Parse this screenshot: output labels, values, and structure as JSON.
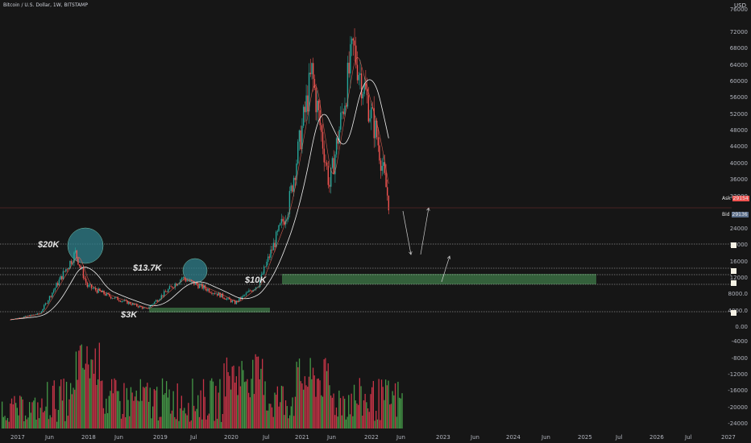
{
  "header": {
    "symbol_line": "Bitcoin / U.S. Dollar, 1W, BITSTAMP",
    "currency": "USD"
  },
  "levels": {
    "l20k": "$20K",
    "l13k": "$13.7K",
    "l10k": "$10K",
    "l3k": "$3K"
  },
  "price_axis": [
    "76000",
    "72000",
    "68000",
    "64000",
    "60000",
    "56000",
    "52000",
    "48000",
    "44000",
    "40000",
    "36000",
    "32000",
    "29154",
    "29136",
    "24000",
    "20000",
    "16000",
    "12000",
    "8000.0",
    "4000.0",
    "0.00"
  ],
  "price_axis_positions_hint": "",
  "volume_axis": [
    "-4000",
    "-8000",
    "-12000",
    "-16000",
    "-20000",
    "-24000"
  ],
  "time_axis": [
    "2017",
    "Jun",
    "2018",
    "Jun",
    "2019",
    "Jul",
    "2020",
    "Jul",
    "2021",
    "Jun",
    "2022",
    "Jun",
    "2023",
    "Jun",
    "2024",
    "Jun",
    "2025",
    "Jul",
    "2026",
    "Jul",
    "2027"
  ],
  "bid_ask": {
    "ask_label": "Ask",
    "ask_value": "29154",
    "bid_label": "Bid",
    "bid_value": "29136"
  },
  "colors": {
    "bg": "#161616",
    "up": "#26a69a",
    "down": "#ef5350",
    "vol_up": "#4caf50",
    "vol_down": "#e53950",
    "zone": "#3f7a48",
    "ma": "#f1f1f1"
  },
  "chart_data": {
    "type": "candlestick",
    "symbol": "BTCUSD",
    "timeframe": "1W",
    "price_levels": [
      20000,
      13700,
      10000,
      3000
    ],
    "annotations": [
      "$20K",
      "$13.7K",
      "$10K",
      "$3K"
    ],
    "approx_close_path": [
      {
        "t": "2017-01",
        "p": 1000
      },
      {
        "t": "2017-06",
        "p": 2500
      },
      {
        "t": "2017-12",
        "p": 17000
      },
      {
        "t": "2018-02",
        "p": 9000
      },
      {
        "t": "2018-06",
        "p": 6500
      },
      {
        "t": "2018-12",
        "p": 3500
      },
      {
        "t": "2019-06",
        "p": 11000
      },
      {
        "t": "2019-12",
        "p": 7200
      },
      {
        "t": "2020-03",
        "p": 5000
      },
      {
        "t": "2020-07",
        "p": 9500
      },
      {
        "t": "2020-12",
        "p": 28000
      },
      {
        "t": "2021-04",
        "p": 60000
      },
      {
        "t": "2021-07",
        "p": 33000
      },
      {
        "t": "2021-11",
        "p": 66000
      },
      {
        "t": "2022-03",
        "p": 45000
      },
      {
        "t": "2022-05",
        "p": 29150
      }
    ]
  }
}
